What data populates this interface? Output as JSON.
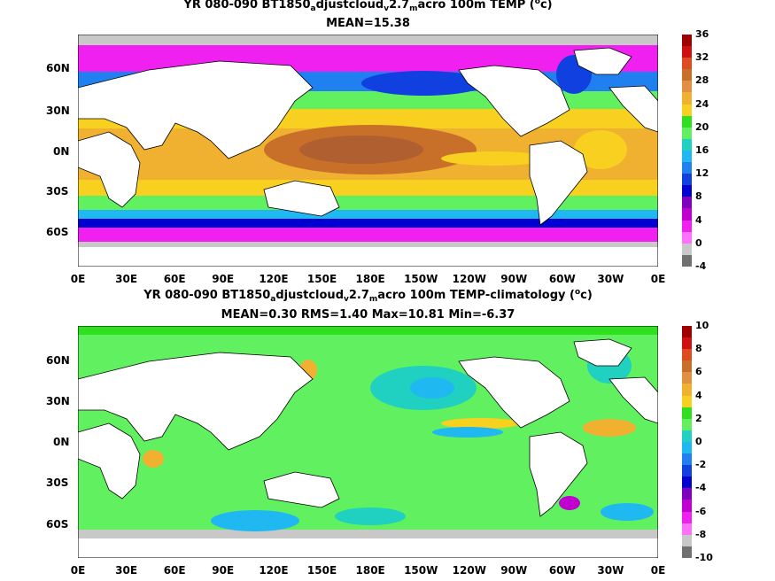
{
  "panels": [
    {
      "title_prefix": "YR 080-090 BT1850",
      "title_sub1": "a",
      "title_mid": "djustcloud",
      "title_sub2": "v",
      "title_mid2": "2.7",
      "title_sub3": "m",
      "title_mid3": "acro 100m TEMP (",
      "title_sup": "o",
      "title_end": "c)",
      "stats": "MEAN=15.38",
      "lat_labels": [
        "60N",
        "30N",
        "0N",
        "30S",
        "60S"
      ],
      "lon_labels": [
        "0E",
        "30E",
        "60E",
        "90E",
        "120E",
        "150E",
        "180E",
        "150W",
        "120W",
        "90W",
        "60W",
        "30W",
        "0E"
      ],
      "colorbar_labels": [
        "36",
        "32",
        "28",
        "24",
        "20",
        "16",
        "12",
        "8",
        "4",
        "0",
        "-4"
      ],
      "colorbar_colors": [
        "#a00000",
        "#d01010",
        "#e04a20",
        "#c8702a",
        "#e09040",
        "#f0b030",
        "#f8d020",
        "#30e020",
        "#60f060",
        "#20d0c0",
        "#20b8f0",
        "#2080f0",
        "#1040e0",
        "#0000d0",
        "#8000c0",
        "#c000d0",
        "#f020f0",
        "#ff70ff",
        "#c8c8c8",
        "#707070"
      ]
    },
    {
      "title_prefix": "YR 080-090 BT1850",
      "title_sub1": "a",
      "title_mid": "djustcloud",
      "title_sub2": "v",
      "title_mid2": "2.7",
      "title_sub3": "m",
      "title_mid3": "acro 100m TEMP-climatology (",
      "title_sup": "o",
      "title_end": "c)",
      "stats": "MEAN=0.30   RMS=1.40   Max=10.81   Min=-6.37",
      "lat_labels": [
        "60N",
        "30N",
        "0N",
        "30S",
        "60S"
      ],
      "lon_labels": [
        "0E",
        "30E",
        "60E",
        "90E",
        "120E",
        "150E",
        "180E",
        "150W",
        "120W",
        "90W",
        "60W",
        "30W",
        "0E"
      ],
      "colorbar_labels": [
        "10",
        "8",
        "6",
        "4",
        "2",
        "0",
        "-2",
        "-4",
        "-6",
        "-8",
        "-10"
      ],
      "colorbar_colors": [
        "#a00000",
        "#d01010",
        "#e04a20",
        "#c8702a",
        "#e09040",
        "#f0b030",
        "#f8d020",
        "#30e020",
        "#60f060",
        "#20d0c0",
        "#20b8f0",
        "#2080f0",
        "#1040e0",
        "#0000d0",
        "#8000c0",
        "#c000d0",
        "#f020f0",
        "#ff70ff",
        "#c8c8c8",
        "#707070"
      ]
    }
  ]
}
